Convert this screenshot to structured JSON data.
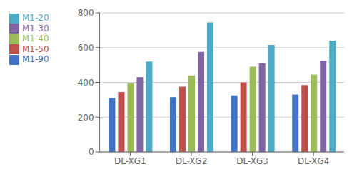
{
  "chart_data": {
    "type": "bar",
    "categories": [
      "DL-XG1",
      "DL-XG2",
      "DL-XG3",
      "DL-XG4"
    ],
    "series": [
      {
        "name": "M1-90",
        "color": "#4472C4",
        "values": [
          310,
          315,
          325,
          330
        ]
      },
      {
        "name": "M1-50",
        "color": "#C0504D",
        "values": [
          345,
          375,
          400,
          385
        ]
      },
      {
        "name": "M1-40",
        "color": "#9BBB59",
        "values": [
          395,
          440,
          490,
          445
        ]
      },
      {
        "name": "M1-30",
        "color": "#8064A2",
        "values": [
          430,
          575,
          510,
          525
        ]
      },
      {
        "name": "M1-20",
        "color": "#4BACC6",
        "values": [
          520,
          745,
          615,
          640
        ]
      }
    ],
    "ylim": [
      0,
      800
    ],
    "yticks": [
      0,
      200,
      400,
      600,
      800
    ],
    "grid": true,
    "legend": "upper left"
  }
}
